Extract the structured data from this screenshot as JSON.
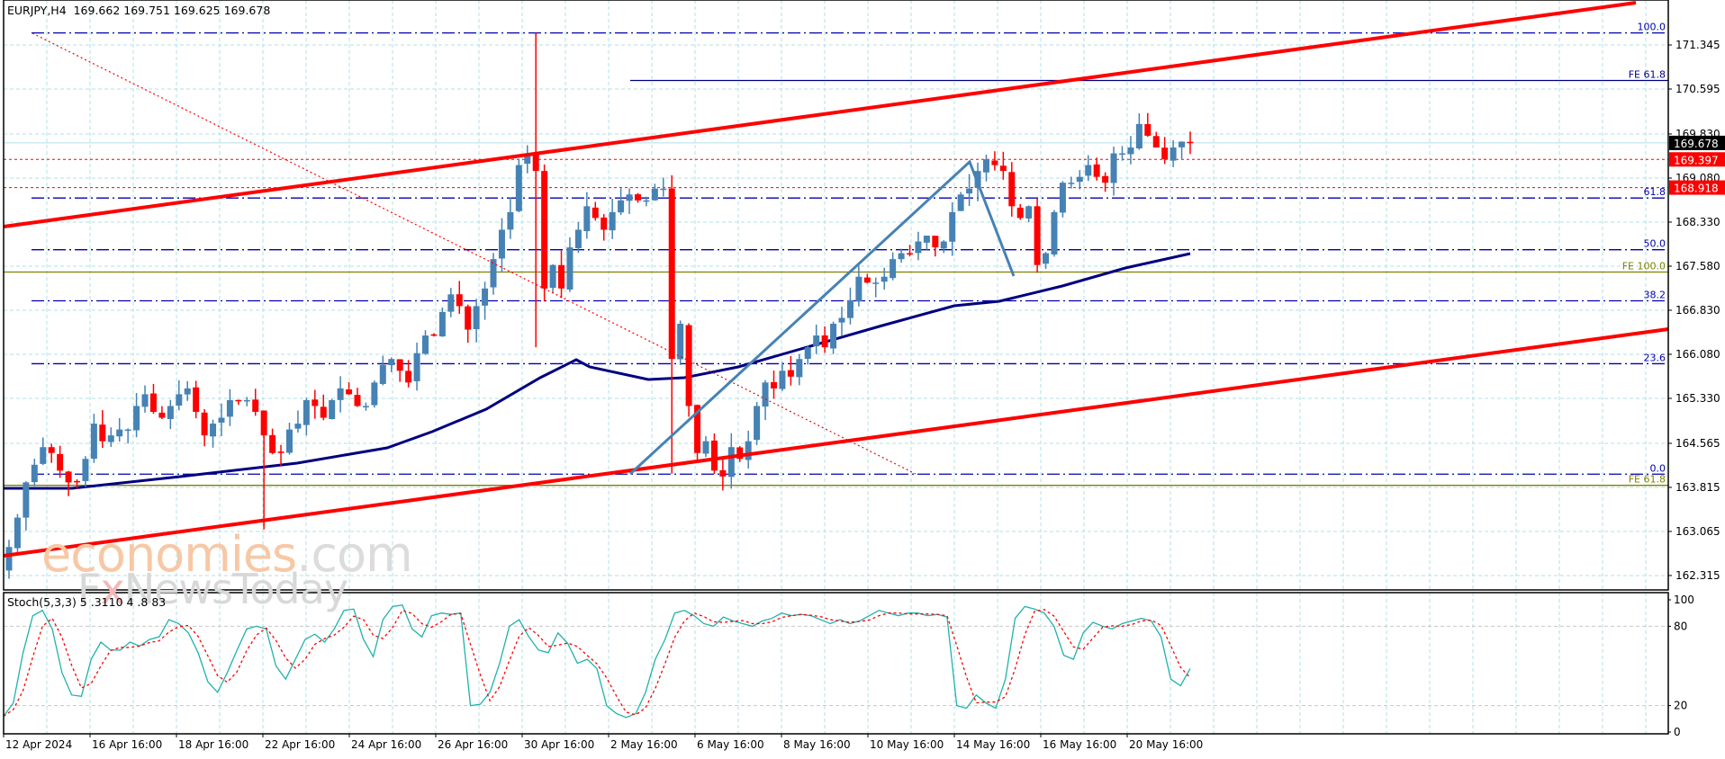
{
  "header": {
    "symbol_line": "EURJPY,H4  169.662 169.751 169.625 169.678"
  },
  "stoch_header": "Stoch(5,3,3) 5 .3110 4 .8 83",
  "watermark": {
    "brand1": "economies",
    "brand1_suffix": ".com",
    "brand2_a": "F",
    "brand2_x": "x",
    "brand2_b": "NewsToday"
  },
  "colors": {
    "bull": "#4682b4",
    "bear": "#ff0000",
    "grid": "#b0e0e6",
    "channel": "#ff0000",
    "ema": "#000080",
    "fib": "#0000b0",
    "fe_olive": "#808000",
    "stoch_main": "#20b2aa",
    "stoch_signal": "#ff0000",
    "price_tag_current": "#000000",
    "price_tag_red": "#ff0000"
  },
  "price_axis": {
    "labels": [
      "171.345",
      "170.595",
      "169.830",
      "169.080",
      "168.330",
      "167.580",
      "166.830",
      "166.080",
      "165.330",
      "164.565",
      "163.815",
      "163.065",
      "162.315"
    ],
    "current_price": "169.678",
    "tag1": "169.397",
    "tag2": "168.918"
  },
  "stoch_axis": {
    "labels": [
      "100",
      "80",
      "20",
      "0"
    ]
  },
  "time_axis": {
    "labels": [
      "12 Apr 2024",
      "16 Apr 16:00",
      "18 Apr 16:00",
      "22 Apr 16:00",
      "24 Apr 16:00",
      "26 Apr 16:00",
      "30 Apr 16:00",
      "2 May 16:00",
      "6 May 16:00",
      "8 May 16:00",
      "10 May 16:00",
      "14 May 16:00",
      "16 May 16:00",
      "20 May 16:00"
    ]
  },
  "fib_levels": [
    {
      "label": "100.0",
      "price": 171.55
    },
    {
      "label": "61.8",
      "price": 168.74
    },
    {
      "label": "50.0",
      "price": 167.86
    },
    {
      "label": "38.2",
      "price": 166.99
    },
    {
      "label": "23.6",
      "price": 165.92
    },
    {
      "label": "0.0",
      "price": 164.04
    }
  ],
  "fe_levels": [
    {
      "label": "FE 61.8",
      "price": 170.74,
      "color": "#000080"
    },
    {
      "label": "FE 100.0",
      "price": 167.48,
      "color": "#808000"
    },
    {
      "label": "FE 61.8",
      "price": 163.85,
      "color": "#808000"
    }
  ],
  "chart_data": {
    "type": "candlestick",
    "title": "EURJPY,H4",
    "ohlc_last": {
      "open": 169.662,
      "high": 169.751,
      "low": 169.625,
      "close": 169.678
    },
    "xlabel": "",
    "ylabel": "",
    "ylim": [
      162.0,
      172.0
    ],
    "grid": true,
    "indicators": [
      "EMA (navy)",
      "Stoch(5,3,3)"
    ],
    "trendlines": [
      {
        "name": "upper channel",
        "from": {
          "x": "12 Apr 2024",
          "price": 168.2
        },
        "to": {
          "x": "right edge",
          "price": 172.0
        }
      },
      {
        "name": "lower channel",
        "from": {
          "x": "12 Apr 2024",
          "price": 162.7
        },
        "to": {
          "x": "right edge",
          "price": 166.5
        }
      }
    ],
    "fibonacci_retracement": {
      "levels": [
        "0.0",
        "23.6",
        "38.2",
        "50.0",
        "61.8",
        "100.0"
      ],
      "from_price": 171.55,
      "to_price": 164.04
    },
    "fibonacci_expansion": {
      "levels": [
        "FE 61.8",
        "FE 100.0",
        "FE 61.8"
      ]
    },
    "horizontal_levels": [
      169.397,
      168.918
    ],
    "closes_approx": [
      162.8,
      163.3,
      163.9,
      164.2,
      164.5,
      164.4,
      164.1,
      163.9,
      163.9,
      164.3,
      164.9,
      164.6,
      164.7,
      164.8,
      164.8,
      165.2,
      165.4,
      165.1,
      165.0,
      165.2,
      165.4,
      165.5,
      165.1,
      164.7,
      164.9,
      165.0,
      165.3,
      165.3,
      165.3,
      165.1,
      164.7,
      164.4,
      164.4,
      164.8,
      164.9,
      165.3,
      165.2,
      165.0,
      165.3,
      165.5,
      165.4,
      165.2,
      165.2,
      165.6,
      165.9,
      166.0,
      165.8,
      165.6,
      166.1,
      166.4,
      166.4,
      166.8,
      167.1,
      166.9,
      166.5,
      166.9,
      167.2,
      167.7,
      168.2,
      168.5,
      169.3,
      169.5,
      169.2,
      167.2,
      167.6,
      167.2,
      167.9,
      168.2,
      168.6,
      168.4,
      168.2,
      168.5,
      168.7,
      168.8,
      168.7,
      168.7,
      168.9,
      168.9,
      166.0,
      166.6,
      165.2,
      164.4,
      164.6,
      164.1,
      164.0,
      164.5,
      164.3,
      164.6,
      165.2,
      165.6,
      165.5,
      165.8,
      165.7,
      166.0,
      166.2,
      166.4,
      166.2,
      166.6,
      166.7,
      167.0,
      167.4,
      167.3,
      167.3,
      167.4,
      167.7,
      167.8,
      167.8,
      168.0,
      168.1,
      167.9,
      168.0,
      168.5,
      168.8,
      168.9,
      169.2,
      169.4,
      169.3,
      169.2,
      168.6,
      168.4,
      168.6,
      167.6,
      167.8,
      168.5,
      169.0,
      169.0,
      169.1,
      169.3,
      169.1,
      169.0,
      169.5,
      169.5,
      169.6,
      170.0,
      169.8,
      169.6,
      169.4,
      169.6,
      169.7,
      169.68
    ],
    "stoch_main_approx": [
      12,
      22,
      60,
      88,
      92,
      78,
      45,
      28,
      27,
      55,
      68,
      62,
      62,
      68,
      65,
      70,
      72,
      85,
      82,
      75,
      60,
      38,
      30,
      45,
      62,
      78,
      80,
      78,
      50,
      40,
      55,
      70,
      74,
      68,
      78,
      92,
      93,
      70,
      57,
      85,
      95,
      96,
      78,
      72,
      88,
      90,
      89,
      90,
      20,
      21,
      30,
      52,
      80,
      85,
      72,
      62,
      60,
      75,
      67,
      52,
      55,
      48,
      20,
      14,
      11,
      14,
      30,
      55,
      70,
      90,
      92,
      88,
      82,
      80,
      87,
      84,
      82,
      80,
      84,
      86,
      90,
      88,
      89,
      88,
      85,
      82,
      85,
      82,
      84,
      88,
      92,
      90,
      88,
      90,
      90,
      88,
      89,
      87,
      20,
      18,
      28,
      22,
      18,
      40,
      86,
      95,
      93,
      90,
      80,
      58,
      55,
      75,
      83,
      80,
      78,
      82,
      84,
      86,
      84,
      72,
      40,
      35,
      48
    ]
  }
}
